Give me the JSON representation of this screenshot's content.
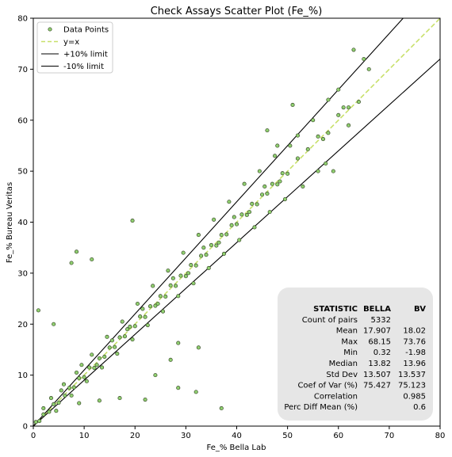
{
  "chart_data": {
    "type": "scatter",
    "title": "Check Assays Scatter Plot (Fe_%)",
    "xlabel": "Fe_% Bella Lab",
    "ylabel": "Fe_% Bureau Veritas",
    "xlim": [
      0,
      80
    ],
    "ylim": [
      0,
      80
    ],
    "xticks": [
      0,
      10,
      20,
      30,
      40,
      50,
      60,
      70,
      80
    ],
    "yticks": [
      0,
      10,
      20,
      30,
      40,
      50,
      60,
      70,
      80
    ],
    "grid": false,
    "legend_position": "top-left",
    "series": [
      {
        "name": "Data Points",
        "kind": "scatter",
        "color": "#90d070",
        "edge_color": "#3a4a2a",
        "points": [
          [
            0.5,
            0.8
          ],
          [
            1.2,
            1.0
          ],
          [
            2.0,
            2.3
          ],
          [
            3.1,
            2.8
          ],
          [
            4.0,
            4.3
          ],
          [
            5.0,
            4.6
          ],
          [
            6.2,
            6.0
          ],
          [
            7.1,
            7.5
          ],
          [
            8.0,
            7.6
          ],
          [
            9.0,
            9.4
          ],
          [
            10.0,
            9.6
          ],
          [
            11.0,
            11.5
          ],
          [
            12.0,
            11.4
          ],
          [
            13.0,
            13.3
          ],
          [
            14.0,
            13.6
          ],
          [
            15.0,
            15.4
          ],
          [
            16.0,
            15.5
          ],
          [
            17.0,
            17.4
          ],
          [
            18.0,
            17.6
          ],
          [
            19.0,
            19.5
          ],
          [
            20.0,
            19.6
          ],
          [
            21.0,
            21.5
          ],
          [
            22.0,
            21.4
          ],
          [
            23.0,
            23.5
          ],
          [
            24.0,
            23.6
          ],
          [
            25.0,
            25.5
          ],
          [
            26.0,
            25.4
          ],
          [
            27.0,
            27.6
          ],
          [
            28.0,
            27.5
          ],
          [
            29.0,
            29.5
          ],
          [
            30.0,
            29.4
          ],
          [
            31.0,
            31.6
          ],
          [
            32.0,
            31.5
          ],
          [
            33.0,
            33.4
          ],
          [
            34.0,
            33.6
          ],
          [
            35.0,
            35.5
          ],
          [
            36.0,
            35.4
          ],
          [
            37.0,
            37.5
          ],
          [
            38.0,
            37.6
          ],
          [
            39.0,
            39.4
          ],
          [
            40.0,
            39.6
          ],
          [
            41.0,
            41.5
          ],
          [
            42.0,
            41.4
          ],
          [
            43.0,
            43.6
          ],
          [
            44.0,
            43.5
          ],
          [
            45.0,
            45.4
          ],
          [
            46.0,
            45.6
          ],
          [
            47.0,
            47.5
          ],
          [
            48.0,
            47.4
          ],
          [
            49.0,
            49.6
          ],
          [
            50.0,
            49.5
          ],
          [
            52.0,
            52.5
          ],
          [
            54.0,
            54.3
          ],
          [
            56.0,
            56.8
          ],
          [
            58.0,
            57.5
          ],
          [
            60.0,
            61.0
          ],
          [
            62.0,
            62.5
          ],
          [
            64.0,
            63.6
          ],
          [
            3.5,
            5.5
          ],
          [
            6.0,
            8.2
          ],
          [
            8.5,
            10.5
          ],
          [
            11.5,
            14.0
          ],
          [
            14.5,
            17.5
          ],
          [
            17.5,
            20.5
          ],
          [
            20.5,
            24.0
          ],
          [
            23.5,
            27.5
          ],
          [
            26.5,
            30.5
          ],
          [
            29.5,
            34.0
          ],
          [
            32.5,
            37.5
          ],
          [
            35.5,
            40.5
          ],
          [
            38.5,
            44.0
          ],
          [
            41.5,
            47.5
          ],
          [
            44.5,
            50.0
          ],
          [
            47.5,
            53.0
          ],
          [
            50.5,
            55.0
          ],
          [
            4.5,
            3.0
          ],
          [
            7.5,
            6.0
          ],
          [
            10.5,
            8.8
          ],
          [
            13.5,
            11.5
          ],
          [
            16.5,
            14.2
          ],
          [
            19.5,
            17.0
          ],
          [
            22.5,
            19.8
          ],
          [
            25.5,
            22.5
          ],
          [
            28.5,
            25.5
          ],
          [
            31.5,
            28.0
          ],
          [
            34.5,
            31.0
          ],
          [
            37.5,
            33.8
          ],
          [
            40.5,
            36.5
          ],
          [
            43.5,
            39.0
          ],
          [
            46.5,
            42.0
          ],
          [
            49.5,
            44.5
          ],
          [
            53.0,
            47.0
          ],
          [
            56.0,
            50.0
          ],
          [
            2.0,
            3.5
          ],
          [
            5.5,
            7.0
          ],
          [
            9.5,
            12.0
          ],
          [
            12.5,
            12.0
          ],
          [
            15.5,
            16.8
          ],
          [
            18.5,
            19.0
          ],
          [
            21.5,
            23.0
          ],
          [
            24.5,
            24.0
          ],
          [
            27.5,
            29.0
          ],
          [
            30.5,
            30.0
          ],
          [
            33.5,
            35.0
          ],
          [
            36.5,
            36.0
          ],
          [
            39.5,
            41.0
          ],
          [
            42.5,
            42.0
          ],
          [
            45.5,
            47.0
          ],
          [
            48.5,
            48.0
          ],
          [
            1.0,
            22.7
          ],
          [
            4.0,
            20.0
          ],
          [
            7.5,
            32.0
          ],
          [
            8.5,
            34.2
          ],
          [
            11.5,
            32.7
          ],
          [
            19.5,
            40.3
          ],
          [
            28.5,
            16.3
          ],
          [
            32.5,
            15.4
          ],
          [
            28.5,
            7.5
          ],
          [
            32.0,
            6.7
          ],
          [
            37.0,
            3.5
          ],
          [
            22.0,
            5.2
          ],
          [
            9.0,
            4.5
          ],
          [
            13.0,
            5.0
          ],
          [
            17.0,
            5.5
          ],
          [
            24.0,
            10.0
          ],
          [
            27.0,
            13.0
          ],
          [
            57.0,
            56.3
          ],
          [
            58.0,
            64.0
          ],
          [
            60.0,
            66.0
          ],
          [
            61.0,
            62.5
          ],
          [
            62.0,
            59.0
          ],
          [
            63.0,
            73.8
          ],
          [
            65.0,
            72.0
          ],
          [
            66.0,
            70.0
          ],
          [
            59.0,
            50.0
          ],
          [
            57.5,
            51.5
          ],
          [
            51.0,
            63.0
          ],
          [
            55.0,
            60.0
          ],
          [
            52.0,
            57.0
          ],
          [
            48.0,
            55.0
          ],
          [
            46.0,
            58.0
          ]
        ]
      },
      {
        "name": "y=x",
        "kind": "line",
        "color": "#c8e06a",
        "dash": true,
        "x": [
          0,
          80
        ],
        "y": [
          0,
          80
        ]
      },
      {
        "name": "+10% limit",
        "kind": "line",
        "color": "#000000",
        "x": [
          0,
          80
        ],
        "y": [
          0,
          88
        ]
      },
      {
        "name": "-10% limit",
        "kind": "line",
        "color": "#000000",
        "x": [
          0,
          80
        ],
        "y": [
          0,
          72
        ]
      }
    ],
    "stats_table": {
      "headers": [
        "STATISTIC",
        "BELLA",
        "BV"
      ],
      "rows": [
        [
          "Count of pairs",
          "5332",
          ""
        ],
        [
          "Mean",
          "17.907",
          "18.02"
        ],
        [
          "Max",
          "68.15",
          "73.76"
        ],
        [
          "Min",
          "0.32",
          "-1.98"
        ],
        [
          "Median",
          "13.82",
          "13.96"
        ],
        [
          "Std Dev",
          "13.507",
          "13.537"
        ],
        [
          "Coef of Var (%)",
          "75.427",
          "75.123"
        ],
        [
          "Correlation",
          "",
          "0.985"
        ],
        [
          "Perc Diff Mean (%)",
          "",
          "0.6"
        ]
      ]
    }
  }
}
